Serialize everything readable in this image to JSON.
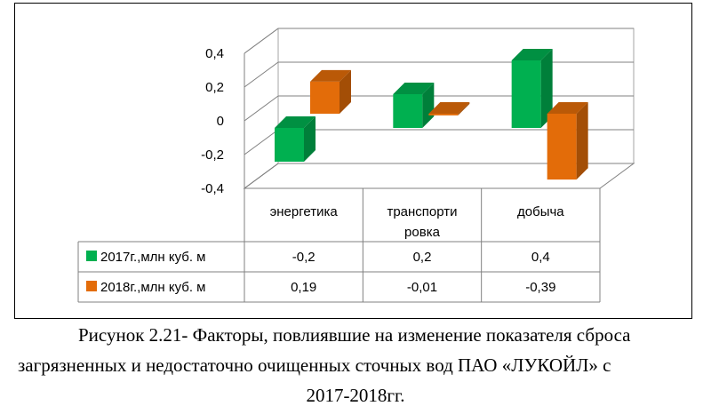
{
  "chart_data": {
    "type": "bar",
    "categories": [
      "энергетика",
      "транспортировка",
      "добыча"
    ],
    "category_label_lines": [
      [
        "энергетика"
      ],
      [
        "транспорти",
        "ровка"
      ],
      [
        "добыча"
      ]
    ],
    "series": [
      {
        "name": "2017г.,млн куб. м",
        "values": [
          -0.2,
          0.2,
          0.4
        ],
        "labels": [
          "-0,2",
          "0,2",
          "0,4"
        ],
        "color": "#00b050"
      },
      {
        "name": "2018г.,млн куб. м",
        "values": [
          0.19,
          -0.01,
          -0.39
        ],
        "labels": [
          "0,19",
          "-0,01",
          "-0,39"
        ],
        "color": "#e36c09"
      }
    ],
    "ylim": [
      -0.4,
      0.4
    ],
    "yticks": [
      "0,4",
      "0,2",
      "0",
      "-0,2",
      "-0,4"
    ],
    "grid": true,
    "legend": "data-table"
  },
  "caption": {
    "line1": "Рисунок 2.21- Факторы, повлиявшие на изменение показателя сброса",
    "line2": "загрязненных и недостаточно очищенных сточных вод ПАО «ЛУКОЙЛ» с",
    "line3": "2017-2018гг."
  }
}
